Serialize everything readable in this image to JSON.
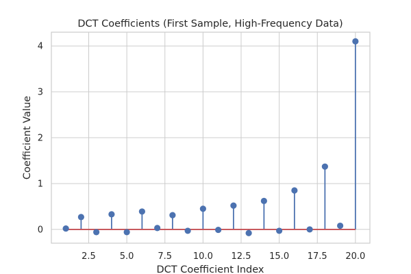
{
  "chart_data": {
    "type": "stem",
    "title": "DCT Coefficients (First Sample, High-Frequency Data)",
    "xlabel": "DCT Coefficient Index",
    "ylabel": "Coefficient Value",
    "xlim": [
      0.05,
      20.95
    ],
    "ylim": [
      -0.3,
      4.3
    ],
    "xticks": [
      2.5,
      5.0,
      7.5,
      10.0,
      12.5,
      15.0,
      17.5,
      20.0
    ],
    "xtick_labels": [
      "2.5",
      "5.0",
      "7.5",
      "10.0",
      "12.5",
      "15.0",
      "17.5",
      "20.0"
    ],
    "yticks": [
      0,
      1,
      2,
      3,
      4
    ],
    "ytick_labels": [
      "0",
      "1",
      "2",
      "3",
      "4"
    ],
    "grid": true,
    "colors": {
      "stem": "#4c72b0",
      "baseline": "#c44e52",
      "grid": "#cccccc"
    },
    "x": [
      1,
      2,
      3,
      4,
      5,
      6,
      7,
      8,
      9,
      10,
      11,
      12,
      13,
      14,
      15,
      16,
      17,
      18,
      19,
      20
    ],
    "values": [
      0.02,
      0.27,
      -0.06,
      0.33,
      -0.06,
      0.39,
      0.03,
      0.31,
      -0.03,
      0.45,
      -0.01,
      0.52,
      -0.08,
      0.62,
      -0.03,
      0.85,
      0.0,
      1.37,
      0.08,
      4.1
    ]
  }
}
